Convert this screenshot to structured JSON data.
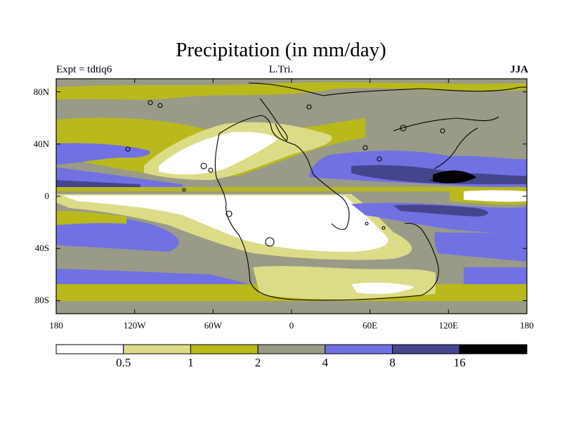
{
  "title": "Precipitation (in mm/day)",
  "subtitle_left": "Expt = tdtiq6",
  "subtitle_center": "L.Tri.",
  "subtitle_right": "JJA",
  "lat_ticks": [
    {
      "value": 80,
      "label": "80N"
    },
    {
      "value": 40,
      "label": "40N"
    },
    {
      "value": 0,
      "label": "0"
    },
    {
      "value": -40,
      "label": "40S"
    },
    {
      "value": -80,
      "label": "80S"
    }
  ],
  "lon_ticks": [
    {
      "value": -180,
      "label": "180"
    },
    {
      "value": -120,
      "label": "120W"
    },
    {
      "value": -60,
      "label": "60W"
    },
    {
      "value": 0,
      "label": "0"
    },
    {
      "value": 60,
      "label": "60E"
    },
    {
      "value": 120,
      "label": "120E"
    },
    {
      "value": 180,
      "label": "180"
    }
  ],
  "colorbar": {
    "colors": [
      "#ffffff",
      "#dcdc88",
      "#b9b91c",
      "#9a9a88",
      "#7171e3",
      "#45458e",
      "#000000"
    ],
    "labels": [
      "0.5",
      "1",
      "2",
      "4",
      "8",
      "16"
    ]
  }
}
